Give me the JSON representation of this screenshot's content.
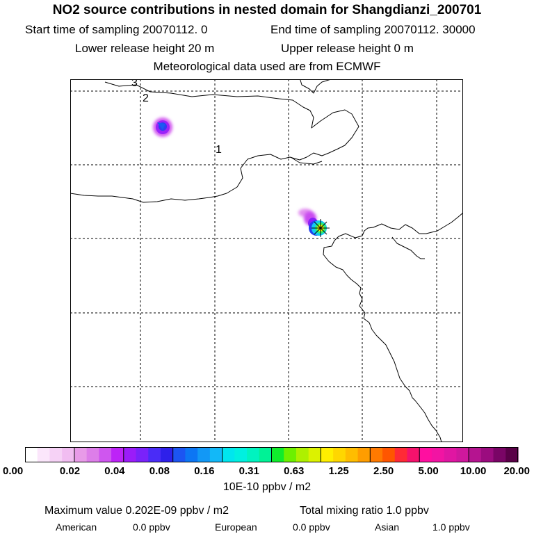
{
  "header": {
    "title": "NO2 source contributions in nested domain for Shangdianzi_200701",
    "start_sampling": "Start time of sampling 20070112.     0",
    "end_sampling": "End time of sampling 20070112. 30000",
    "lower_release": "Lower release height   20 m",
    "upper_release": "Upper release height    0 m",
    "met_data": "Meteorological data used are from ECMWF"
  },
  "map": {
    "region_labels": [
      "3",
      "2",
      "1"
    ],
    "colors": {
      "border": "#000000",
      "grid": "#000000"
    }
  },
  "colorbar": {
    "tick_labels": [
      "0.00",
      "0.02",
      "0.04",
      "0.08",
      "0.16",
      "0.31",
      "0.63",
      "1.25",
      "2.50",
      "5.00",
      "10.00",
      "20.00"
    ],
    "colors": [
      "#ffffff",
      "#fbe6fb",
      "#f6d2f6",
      "#f1bdf1",
      "#e89be8",
      "#dd7ee9",
      "#cf56ef",
      "#bd23f7",
      "#9b1cf9",
      "#7a22fa",
      "#4a2cf7",
      "#2e20ea",
      "#1c55f2",
      "#0c76f4",
      "#1298f6",
      "#12b8f8",
      "#00e6ee",
      "#00f0e0",
      "#00f3c0",
      "#00f296",
      "#10ec2c",
      "#6df000",
      "#aef000",
      "#dcf200",
      "#ffef00",
      "#ffd700",
      "#ffbd00",
      "#ff9d00",
      "#ff7a00",
      "#ff5600",
      "#ff2a36",
      "#f5126c",
      "#ff0fa0",
      "#f214a3",
      "#e016a2",
      "#cf189d",
      "#b51490",
      "#9b0c7f",
      "#7a0566",
      "#5a0048"
    ],
    "units": "10E-10 ppbv / m2"
  },
  "stats": {
    "max_value": "Maximum value  0.202E-09 ppbv / m2",
    "total_mixing": "Total mixing ratio      1.0 ppbv",
    "american_label": "American",
    "american_value": "0.0 ppbv",
    "european_label": "European",
    "european_value": "0.0 ppbv",
    "asian_label": "Asian",
    "asian_value": "1.0 ppbv"
  }
}
